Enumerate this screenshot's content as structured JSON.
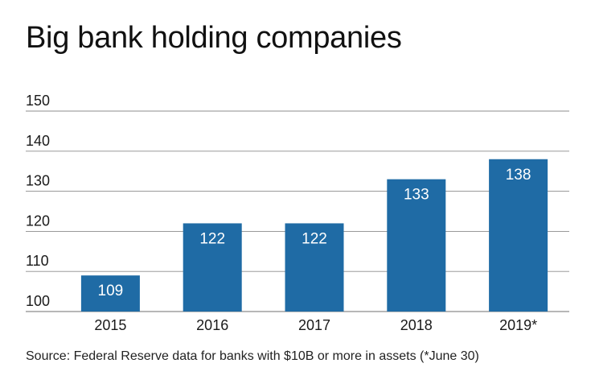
{
  "title": "Big bank holding companies",
  "source": "Source: Federal Reserve data for banks with $10B or more in assets (*June 30)",
  "colors": {
    "bar": "#1f6ba5",
    "grid": "#8c8c8c",
    "bar_label": "#ffffff",
    "text": "#1a1a1a"
  },
  "chart_data": {
    "type": "bar",
    "title": "Big bank holding companies",
    "xlabel": "",
    "ylabel": "",
    "categories": [
      "2015",
      "2016",
      "2017",
      "2018",
      "2019*"
    ],
    "values": [
      109,
      122,
      122,
      133,
      138
    ],
    "data_labels": [
      "109",
      "122",
      "122",
      "133",
      "138"
    ],
    "ylim": [
      100,
      150
    ],
    "yticks": [
      100,
      110,
      120,
      130,
      140,
      150
    ],
    "ytick_labels": [
      "100",
      "110",
      "120",
      "130",
      "140",
      "150"
    ],
    "grid": true,
    "legend": "none"
  }
}
